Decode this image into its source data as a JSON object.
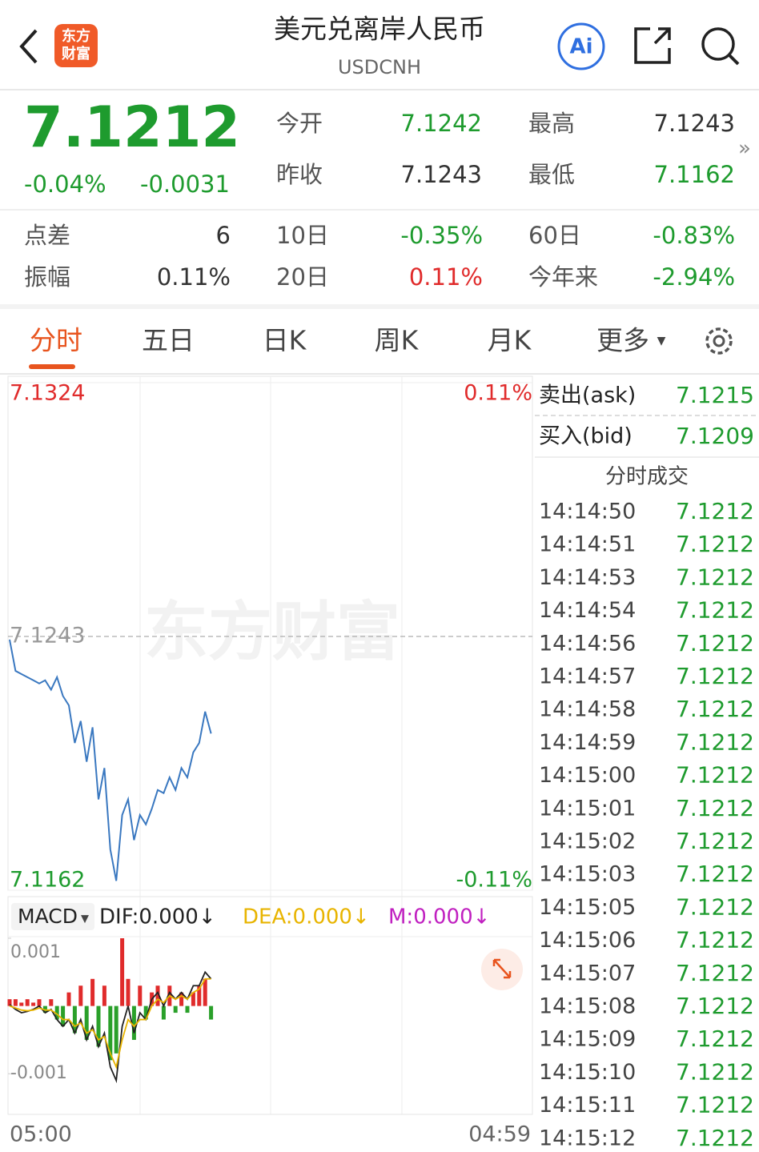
{
  "header": {
    "logo": [
      "东方",
      "财富"
    ],
    "title": "美元兑离岸人民币",
    "subtitle": "USDCNH",
    "ai": "Ai"
  },
  "quote": {
    "price": "7.1212",
    "change_pct": "-0.04%",
    "change": "-0.0031",
    "color": "#1e9b2e",
    "stats": [
      {
        "label": "今开",
        "value": "7.1242",
        "color": "#1e9b2e"
      },
      {
        "label": "最高",
        "value": "7.1243",
        "color": "#333333"
      },
      {
        "label": "昨收",
        "value": "7.1243",
        "color": "#333333"
      },
      {
        "label": "最低",
        "value": "7.1162",
        "color": "#1e9b2e"
      }
    ]
  },
  "metrics": [
    {
      "label": "点差",
      "value": "6",
      "color": "#333333"
    },
    {
      "label": "10日",
      "value": "-0.35%",
      "color": "#1e9b2e"
    },
    {
      "label": "60日",
      "value": "-0.83%",
      "color": "#1e9b2e"
    },
    {
      "label": "振幅",
      "value": "0.11%",
      "color": "#333333"
    },
    {
      "label": "20日",
      "value": "0.11%",
      "color": "#e02b2b"
    },
    {
      "label": "今年来",
      "value": "-2.94%",
      "color": "#1e9b2e"
    }
  ],
  "tabs": [
    "分时",
    "五日",
    "日K",
    "周K",
    "月K",
    "更多"
  ],
  "chart_data": [
    {
      "type": "line",
      "color": "#3a78c0",
      "ylim": [
        7.1162,
        7.1324
      ],
      "yticks": [
        7.1162,
        7.1243,
        7.1324
      ],
      "right_labels": [
        "-0.11%",
        "0.11%"
      ],
      "x_labels": [
        "05:00",
        "04:59"
      ],
      "watermark": "东方财富",
      "values": [
        7.1242,
        7.1232,
        7.1231,
        7.123,
        7.1229,
        7.1228,
        7.1229,
        7.1226,
        7.123,
        7.1224,
        7.1221,
        7.1209,
        7.1216,
        7.1203,
        7.1214,
        7.1191,
        7.1201,
        7.1175,
        7.1165,
        7.1186,
        7.1191,
        7.1178,
        7.1186,
        7.1183,
        7.1188,
        7.1194,
        7.1193,
        7.1198,
        7.1194,
        7.1201,
        7.1198,
        7.1206,
        7.1209,
        7.1219,
        7.1212
      ]
    },
    {
      "type": "macd",
      "indicator": "MACD",
      "ylim": [
        -0.0016,
        0.001
      ],
      "yticks": [
        -0.001,
        0.001
      ],
      "up_color": "#e02b2b",
      "down_color": "#2aa02a",
      "series": [
        {
          "name": "DIF:0.000↓",
          "color": "#222222",
          "values": [
            2e-05,
            -5e-05,
            -0.0001,
            -8e-05,
            -5e-05,
            0,
            -0.0001,
            -5e-05,
            -0.0002,
            -0.0003,
            -0.0002,
            -0.0004,
            -0.0002,
            -0.0005,
            -0.0003,
            -0.0006,
            -0.0004,
            -0.0009,
            -0.0011,
            -0.0003,
            0,
            -0.0004,
            -0.0001,
            -0.0002,
            0.0001,
            0.0002,
            0,
            0.0002,
            0.0001,
            0.0002,
            0.0001,
            0.0003,
            0.0003,
            0.0005,
            0.0004
          ]
        },
        {
          "name": "DEA:0.000↓",
          "color": "#e8b400",
          "values": [
            0,
            -3e-05,
            -6e-05,
            -7e-05,
            -6e-05,
            -3e-05,
            -6e-05,
            -6e-05,
            -0.00012,
            -0.0002,
            -0.0002,
            -0.0003,
            -0.00025,
            -0.0004,
            -0.00035,
            -0.0005,
            -0.00045,
            -0.0007,
            -0.0009,
            -0.0005,
            -0.0002,
            -0.0003,
            -0.0002,
            -0.0002,
            0,
            0.0001,
            5e-05,
            0.00015,
            0.0001,
            0.00015,
            0.0001,
            0.0002,
            0.00025,
            0.0004,
            0.0004
          ]
        }
      ],
      "histogram": {
        "name": "M:0.000↓",
        "color": "#c020c0",
        "values": [
          0.0001,
          0.0001,
          5e-05,
          0.0001,
          5e-05,
          0.0001,
          -0.0001,
          0.0001,
          -0.0002,
          -0.0003,
          0.0002,
          -0.0004,
          0.0003,
          -0.0005,
          0.0004,
          -0.0006,
          0.0003,
          -0.0008,
          -0.0007,
          0.001,
          0.0004,
          -0.0005,
          0.0003,
          -0.0002,
          0.0002,
          0.0003,
          -0.0002,
          0.0003,
          -0.0001,
          0.0002,
          -0.0001,
          0.0002,
          0.0003,
          0.0004,
          -0.0002
        ]
      }
    }
  ],
  "book": {
    "ask": {
      "label": "卖出(ask)",
      "value": "7.1215"
    },
    "bid": {
      "label": "买入(bid)",
      "value": "7.1209"
    },
    "trades_title": "分时成交",
    "trade_color": "#1e9b2e",
    "trades": [
      [
        "14:14:50",
        "7.1212"
      ],
      [
        "14:14:51",
        "7.1212"
      ],
      [
        "14:14:53",
        "7.1212"
      ],
      [
        "14:14:54",
        "7.1212"
      ],
      [
        "14:14:56",
        "7.1212"
      ],
      [
        "14:14:57",
        "7.1212"
      ],
      [
        "14:14:58",
        "7.1212"
      ],
      [
        "14:14:59",
        "7.1212"
      ],
      [
        "14:15:00",
        "7.1212"
      ],
      [
        "14:15:01",
        "7.1212"
      ],
      [
        "14:15:02",
        "7.1212"
      ],
      [
        "14:15:03",
        "7.1212"
      ],
      [
        "14:15:05",
        "7.1212"
      ],
      [
        "14:15:06",
        "7.1212"
      ],
      [
        "14:15:07",
        "7.1212"
      ],
      [
        "14:15:08",
        "7.1212"
      ],
      [
        "14:15:09",
        "7.1212"
      ],
      [
        "14:15:10",
        "7.1212"
      ],
      [
        "14:15:11",
        "7.1212"
      ],
      [
        "14:15:12",
        "7.1212"
      ]
    ]
  }
}
